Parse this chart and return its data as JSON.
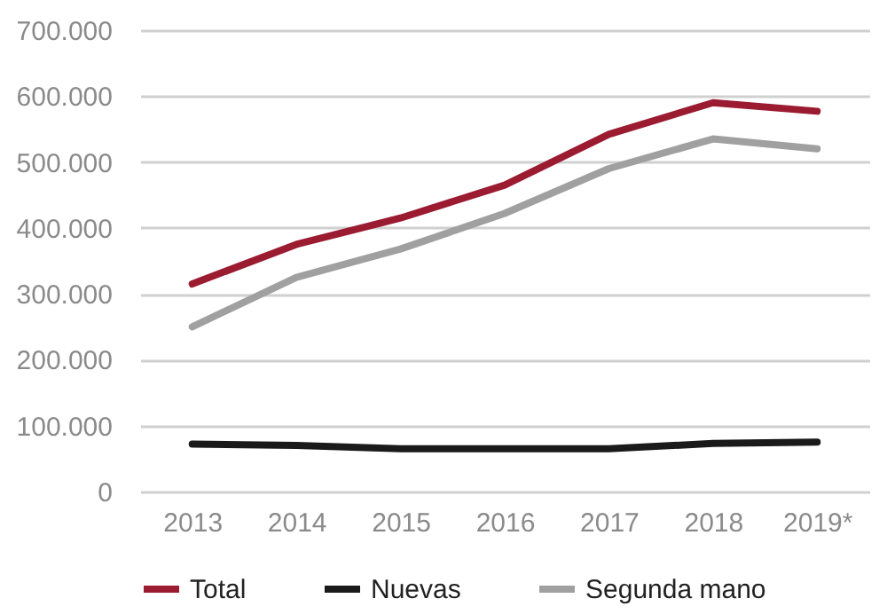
{
  "chart_data": {
    "type": "line",
    "categories": [
      "2013",
      "2014",
      "2015",
      "2016",
      "2017",
      "2018",
      "2019*"
    ],
    "series": [
      {
        "name": "Total",
        "color": "#9b1b30",
        "values": [
          315000,
          375000,
          415000,
          465000,
          542000,
          590000,
          577000
        ]
      },
      {
        "name": "Nuevas",
        "color": "#1a1a1a",
        "values": [
          72000,
          70000,
          65000,
          65000,
          65000,
          73000,
          75000
        ]
      },
      {
        "name": "Segunda mano",
        "color": "#a0a0a0",
        "values": [
          250000,
          325000,
          368000,
          422000,
          490000,
          535000,
          520000
        ]
      }
    ],
    "ylim": [
      0,
      700000
    ],
    "yticks": [
      {
        "value": 0,
        "label": "0"
      },
      {
        "value": 100000,
        "label": "100.000"
      },
      {
        "value": 200000,
        "label": "200.000"
      },
      {
        "value": 300000,
        "label": "300.000"
      },
      {
        "value": 400000,
        "label": "400.000"
      },
      {
        "value": 500000,
        "label": "500.000"
      },
      {
        "value": 600000,
        "label": "600.000"
      },
      {
        "value": 700000,
        "label": "700.000"
      }
    ],
    "grid": "y",
    "legend": "bottom",
    "marker": "none",
    "line_style": "solid"
  }
}
